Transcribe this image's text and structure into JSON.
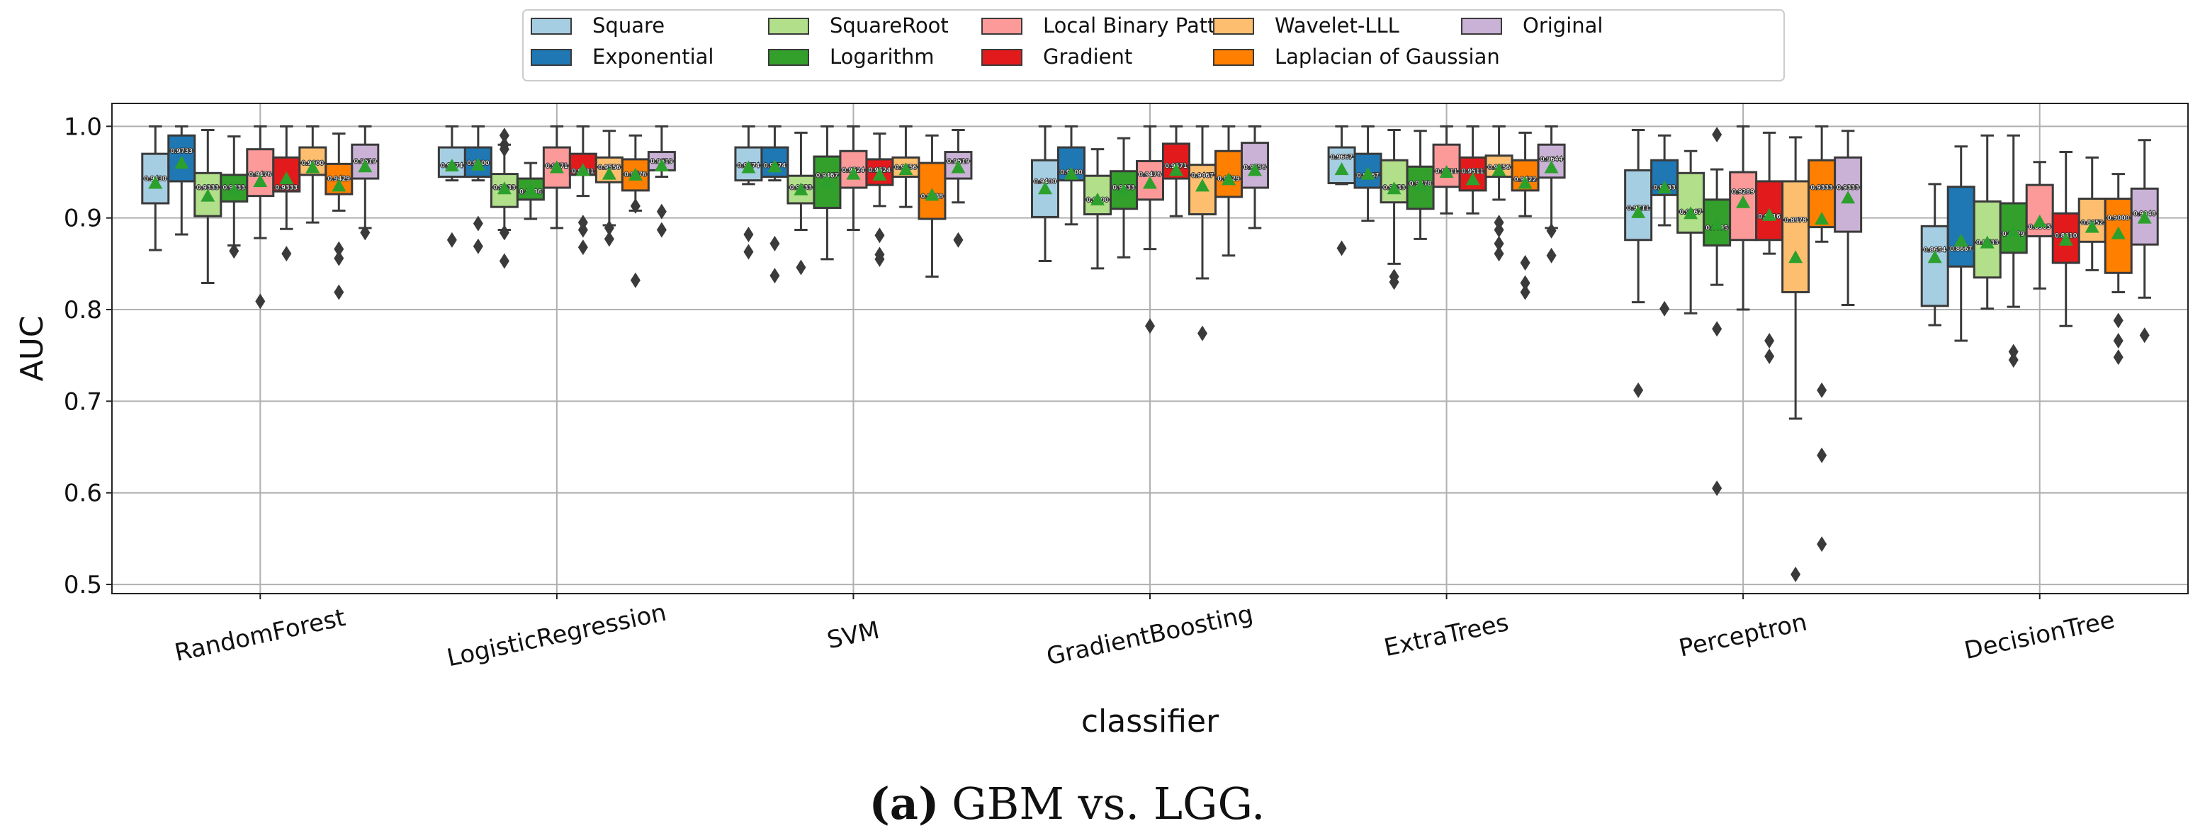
{
  "chart_data": {
    "type": "boxplot",
    "title": "",
    "xlabel": "classifier",
    "ylabel": "AUC",
    "ylim": [
      0.49,
      1.025
    ],
    "yticks": [
      "0.5",
      "0.6",
      "0.7",
      "0.8",
      "0.9",
      "1.0"
    ],
    "grid": true,
    "legend_position": "top-center",
    "caption_tag": "(a)",
    "caption": "GBM vs. LGG.",
    "categories": [
      "RandomForest",
      "LogisticRegression",
      "SVM",
      "GradientBoosting",
      "ExtraTrees",
      "Perceptron",
      "DecisionTree"
    ],
    "series": [
      {
        "name": "Square",
        "color": "#a6cee3",
        "boxes": [
          {
            "min": 0.865,
            "q1": 0.916,
            "median": 0.943,
            "q3": 0.97,
            "max": 1.0,
            "mean": 0.938,
            "median_label": "0.9430",
            "outliers": []
          },
          {
            "min": 0.941,
            "q1": 0.945,
            "median": 0.9574,
            "q3": 0.977,
            "max": 1.0,
            "mean": 0.957,
            "median_label": "0.9574",
            "outliers": [
              0.876
            ]
          },
          {
            "min": 0.937,
            "q1": 0.941,
            "median": 0.9574,
            "q3": 0.977,
            "max": 1.0,
            "mean": 0.955,
            "median_label": "0.9574",
            "outliers": [
              0.882,
              0.863
            ]
          },
          {
            "min": 0.853,
            "q1": 0.901,
            "median": 0.94,
            "q3": 0.963,
            "max": 1.0,
            "mean": 0.932,
            "median_label": "0.9400",
            "outliers": []
          },
          {
            "min": 0.937,
            "q1": 0.938,
            "median": 0.9667,
            "q3": 0.977,
            "max": 1.0,
            "mean": 0.953,
            "median_label": "0.9667",
            "outliers": [
              0.867
            ]
          },
          {
            "min": 0.808,
            "q1": 0.876,
            "median": 0.9111,
            "q3": 0.952,
            "max": 0.996,
            "mean": 0.906,
            "median_label": "0.9111",
            "outliers": [
              0.712
            ]
          },
          {
            "min": 0.783,
            "q1": 0.804,
            "median": 0.8654,
            "q3": 0.891,
            "max": 0.937,
            "mean": 0.857,
            "median_label": "0.8654",
            "outliers": []
          }
        ]
      },
      {
        "name": "Exponential",
        "color": "#1f78b4",
        "boxes": [
          {
            "min": 0.882,
            "q1": 0.94,
            "median": 0.9733,
            "q3": 0.99,
            "max": 1.0,
            "mean": 0.96,
            "median_label": "0.9733",
            "outliers": []
          },
          {
            "min": 0.941,
            "q1": 0.945,
            "median": 0.96,
            "q3": 0.977,
            "max": 1.0,
            "mean": 0.958,
            "median_label": "0.9600",
            "outliers": [
              0.894,
              0.869
            ]
          },
          {
            "min": 0.941,
            "q1": 0.945,
            "median": 0.9574,
            "q3": 0.977,
            "max": 1.0,
            "mean": 0.956,
            "median_label": "0.9574",
            "outliers": [
              0.872,
              0.837
            ]
          },
          {
            "min": 0.893,
            "q1": 0.941,
            "median": 0.95,
            "q3": 0.977,
            "max": 1.0,
            "mean": 0.948,
            "median_label": "0.9500",
            "outliers": []
          },
          {
            "min": 0.897,
            "q1": 0.933,
            "median": 0.9467,
            "q3": 0.97,
            "max": 1.0,
            "mean": 0.948,
            "median_label": "0.9467",
            "outliers": []
          },
          {
            "min": 0.892,
            "q1": 0.925,
            "median": 0.9333,
            "q3": 0.963,
            "max": 0.99,
            "mean": 0.933,
            "median_label": "0.9333",
            "outliers": [
              0.801
            ]
          },
          {
            "min": 0.766,
            "q1": 0.847,
            "median": 0.8667,
            "q3": 0.934,
            "max": 0.978,
            "mean": 0.875,
            "median_label": "0.8667",
            "outliers": []
          }
        ]
      },
      {
        "name": "SquareRoot",
        "color": "#b2df8a",
        "boxes": [
          {
            "min": 0.829,
            "q1": 0.902,
            "median": 0.9333,
            "q3": 0.949,
            "max": 0.996,
            "mean": 0.924,
            "median_label": "0.9333",
            "outliers": []
          },
          {
            "min": 0.887,
            "q1": 0.912,
            "median": 0.9333,
            "q3": 0.948,
            "max": 0.98,
            "mean": 0.932,
            "median_label": "0.9333",
            "outliers": [
              0.99,
              0.98,
              0.975,
              0.884,
              0.853
            ]
          },
          {
            "min": 0.887,
            "q1": 0.916,
            "median": 0.9333,
            "q3": 0.946,
            "max": 0.993,
            "mean": 0.931,
            "median_label": "0.9333",
            "outliers": [
              0.846
            ]
          },
          {
            "min": 0.845,
            "q1": 0.904,
            "median": 0.92,
            "q3": 0.946,
            "max": 0.975,
            "mean": 0.92,
            "median_label": "0.9200",
            "outliers": []
          },
          {
            "min": 0.85,
            "q1": 0.917,
            "median": 0.9333,
            "q3": 0.963,
            "max": 0.996,
            "mean": 0.932,
            "median_label": "0.9333",
            "outliers": [
              0.836,
              0.83
            ]
          },
          {
            "min": 0.796,
            "q1": 0.884,
            "median": 0.9067,
            "q3": 0.949,
            "max": 0.973,
            "mean": 0.905,
            "median_label": "0.9067",
            "outliers": []
          },
          {
            "min": 0.801,
            "q1": 0.835,
            "median": 0.8733,
            "q3": 0.918,
            "max": 0.99,
            "mean": 0.873,
            "median_label": "0.8733",
            "outliers": []
          }
        ]
      },
      {
        "name": "Logarithm",
        "color": "#33a02c",
        "boxes": [
          {
            "min": 0.87,
            "q1": 0.918,
            "median": 0.9333,
            "q3": 0.947,
            "max": 0.989,
            "mean": 0.93,
            "median_label": "0.9333",
            "outliers": [
              0.864
            ]
          },
          {
            "min": 0.899,
            "q1": 0.92,
            "median": 0.9286,
            "q3": 0.943,
            "max": 0.96,
            "mean": 0.931,
            "median_label": "0.9286",
            "outliers": []
          },
          {
            "min": 0.855,
            "q1": 0.911,
            "median": 0.9467,
            "q3": 0.967,
            "max": 1.0,
            "mean": 0.94,
            "median_label": "0.9467",
            "outliers": []
          },
          {
            "min": 0.857,
            "q1": 0.91,
            "median": 0.9333,
            "q3": 0.951,
            "max": 0.987,
            "mean": 0.93,
            "median_label": "0.9333",
            "outliers": []
          },
          {
            "min": 0.877,
            "q1": 0.91,
            "median": 0.9378,
            "q3": 0.956,
            "max": 0.995,
            "mean": 0.935,
            "median_label": "0.9378",
            "outliers": []
          },
          {
            "min": 0.827,
            "q1": 0.87,
            "median": 0.8895,
            "q3": 0.92,
            "max": 0.953,
            "mean": 0.893,
            "median_label": "0.8895",
            "outliers": [
              0.991,
              0.779,
              0.605
            ]
          },
          {
            "min": 0.803,
            "q1": 0.862,
            "median": 0.8829,
            "q3": 0.916,
            "max": 0.99,
            "mean": 0.885,
            "median_label": "0.8829",
            "outliers": [
              0.754,
              0.745
            ]
          }
        ]
      },
      {
        "name": "Local Binary Pattern",
        "color": "#fb9a99",
        "boxes": [
          {
            "min": 0.878,
            "q1": 0.924,
            "median": 0.9476,
            "q3": 0.975,
            "max": 1.0,
            "mean": 0.94,
            "median_label": "0.9476",
            "outliers": [
              0.809
            ]
          },
          {
            "min": 0.889,
            "q1": 0.933,
            "median": 0.9571,
            "q3": 0.977,
            "max": 1.0,
            "mean": 0.955,
            "median_label": "0.9571",
            "outliers": []
          },
          {
            "min": 0.887,
            "q1": 0.933,
            "median": 0.9524,
            "q3": 0.973,
            "max": 1.0,
            "mean": 0.948,
            "median_label": "0.9524",
            "outliers": []
          },
          {
            "min": 0.866,
            "q1": 0.92,
            "median": 0.9476,
            "q3": 0.962,
            "max": 1.0,
            "mean": 0.938,
            "median_label": "0.9476",
            "outliers": [
              0.782
            ]
          },
          {
            "min": 0.905,
            "q1": 0.934,
            "median": 0.9511,
            "q3": 0.98,
            "max": 1.0,
            "mean": 0.95,
            "median_label": "0.9511",
            "outliers": []
          },
          {
            "min": 0.8,
            "q1": 0.876,
            "median": 0.9289,
            "q3": 0.95,
            "max": 1.0,
            "mean": 0.917,
            "median_label": "0.9289",
            "outliers": []
          },
          {
            "min": 0.823,
            "q1": 0.88,
            "median": 0.8905,
            "q3": 0.936,
            "max": 0.961,
            "mean": 0.896,
            "median_label": "0.8905",
            "outliers": []
          }
        ]
      },
      {
        "name": "Gradient",
        "color": "#e31a1c",
        "boxes": [
          {
            "min": 0.888,
            "q1": 0.929,
            "median": 0.9333,
            "q3": 0.966,
            "max": 1.0,
            "mean": 0.943,
            "median_label": "0.9333",
            "outliers": [
              0.861
            ]
          },
          {
            "min": 0.924,
            "q1": 0.947,
            "median": 0.9511,
            "q3": 0.97,
            "max": 1.0,
            "mean": 0.952,
            "median_label": "0.9511",
            "outliers": [
              0.895,
              0.887,
              0.868
            ]
          },
          {
            "min": 0.913,
            "q1": 0.936,
            "median": 0.9524,
            "q3": 0.964,
            "max": 0.992,
            "mean": 0.947,
            "median_label": "0.9524",
            "outliers": [
              0.881,
              0.86,
              0.855
            ]
          },
          {
            "min": 0.902,
            "q1": 0.943,
            "median": 0.9571,
            "q3": 0.981,
            "max": 1.0,
            "mean": 0.952,
            "median_label": "0.9571",
            "outliers": []
          },
          {
            "min": 0.905,
            "q1": 0.93,
            "median": 0.9511,
            "q3": 0.966,
            "max": 1.0,
            "mean": 0.942,
            "median_label": "0.9511",
            "outliers": []
          },
          {
            "min": 0.861,
            "q1": 0.876,
            "median": 0.9016,
            "q3": 0.94,
            "max": 0.993,
            "mean": 0.903,
            "median_label": "0.9016",
            "outliers": [
              0.766,
              0.749
            ]
          },
          {
            "min": 0.782,
            "q1": 0.851,
            "median": 0.881,
            "q3": 0.905,
            "max": 0.972,
            "mean": 0.876,
            "median_label": "0.8810",
            "outliers": []
          }
        ]
      },
      {
        "name": "Wavelet-LLL",
        "color": "#fdbf6f",
        "boxes": [
          {
            "min": 0.895,
            "q1": 0.947,
            "median": 0.96,
            "q3": 0.977,
            "max": 1.0,
            "mean": 0.955,
            "median_label": "0.9600",
            "outliers": []
          },
          {
            "min": 0.892,
            "q1": 0.939,
            "median": 0.9556,
            "q3": 0.966,
            "max": 0.995,
            "mean": 0.948,
            "median_label": "0.9556",
            "outliers": [
              0.889,
              0.877
            ]
          },
          {
            "min": 0.912,
            "q1": 0.945,
            "median": 0.9556,
            "q3": 0.966,
            "max": 1.0,
            "mean": 0.953,
            "median_label": "0.9556",
            "outliers": []
          },
          {
            "min": 0.834,
            "q1": 0.904,
            "median": 0.9467,
            "q3": 0.958,
            "max": 1.0,
            "mean": 0.935,
            "median_label": "0.9467",
            "outliers": [
              0.774
            ]
          },
          {
            "min": 0.92,
            "q1": 0.945,
            "median": 0.9556,
            "q3": 0.968,
            "max": 1.0,
            "mean": 0.952,
            "median_label": "0.9556",
            "outliers": [
              0.895,
              0.887,
              0.872,
              0.861
            ]
          },
          {
            "min": 0.681,
            "q1": 0.819,
            "median": 0.8978,
            "q3": 0.94,
            "max": 0.988,
            "mean": 0.857,
            "median_label": "0.8978",
            "outliers": [
              0.511
            ]
          },
          {
            "min": 0.843,
            "q1": 0.874,
            "median": 0.8952,
            "q3": 0.921,
            "max": 0.966,
            "mean": 0.89,
            "median_label": "0.8952",
            "outliers": []
          }
        ]
      },
      {
        "name": "Laplacian of Gaussian",
        "color": "#ff7f00",
        "boxes": [
          {
            "min": 0.908,
            "q1": 0.926,
            "median": 0.9429,
            "q3": 0.959,
            "max": 0.992,
            "mean": 0.935,
            "median_label": "0.9429",
            "outliers": [
              0.866,
              0.856,
              0.819
            ]
          },
          {
            "min": 0.908,
            "q1": 0.93,
            "median": 0.9476,
            "q3": 0.964,
            "max": 0.99,
            "mean": 0.947,
            "median_label": "0.9476",
            "outliers": [
              0.913,
              0.832
            ]
          },
          {
            "min": 0.836,
            "q1": 0.899,
            "median": 0.9238,
            "q3": 0.96,
            "max": 0.99,
            "mean": 0.925,
            "median_label": "0.9238",
            "outliers": []
          },
          {
            "min": 0.859,
            "q1": 0.923,
            "median": 0.9429,
            "q3": 0.973,
            "max": 1.0,
            "mean": 0.942,
            "median_label": "0.9429",
            "outliers": []
          },
          {
            "min": 0.902,
            "q1": 0.93,
            "median": 0.9422,
            "q3": 0.963,
            "max": 0.993,
            "mean": 0.938,
            "median_label": "0.9422",
            "outliers": [
              0.851,
              0.829,
              0.819
            ]
          },
          {
            "min": 0.874,
            "q1": 0.89,
            "median": 0.9333,
            "q3": 0.963,
            "max": 1.0,
            "mean": 0.899,
            "median_label": "0.9333",
            "outliers": [
              0.712,
              0.641,
              0.544
            ]
          },
          {
            "min": 0.819,
            "q1": 0.84,
            "median": 0.9,
            "q3": 0.921,
            "max": 0.948,
            "mean": 0.883,
            "median_label": "0.9000",
            "outliers": [
              0.788,
              0.766,
              0.748
            ]
          }
        ]
      },
      {
        "name": "Original",
        "color": "#cab2d6",
        "boxes": [
          {
            "min": 0.889,
            "q1": 0.943,
            "median": 0.9619,
            "q3": 0.98,
            "max": 1.0,
            "mean": 0.956,
            "median_label": "0.9619",
            "outliers": [
              0.884
            ]
          },
          {
            "min": 0.945,
            "q1": 0.952,
            "median": 0.9619,
            "q3": 0.972,
            "max": 1.0,
            "mean": 0.957,
            "median_label": "0.9619",
            "outliers": [
              0.907,
              0.887
            ]
          },
          {
            "min": 0.917,
            "q1": 0.943,
            "median": 0.9619,
            "q3": 0.972,
            "max": 0.996,
            "mean": 0.955,
            "median_label": "0.9619",
            "outliers": [
              0.876
            ]
          },
          {
            "min": 0.889,
            "q1": 0.933,
            "median": 0.9556,
            "q3": 0.982,
            "max": 1.0,
            "mean": 0.952,
            "median_label": "0.9556",
            "outliers": []
          },
          {
            "min": 0.889,
            "q1": 0.944,
            "median": 0.9644,
            "q3": 0.98,
            "max": 1.0,
            "mean": 0.955,
            "median_label": "0.9644",
            "outliers": [
              0.886,
              0.859
            ]
          },
          {
            "min": 0.805,
            "q1": 0.885,
            "median": 0.9333,
            "q3": 0.966,
            "max": 0.995,
            "mean": 0.922,
            "median_label": "0.9333",
            "outliers": []
          },
          {
            "min": 0.813,
            "q1": 0.871,
            "median": 0.9048,
            "q3": 0.932,
            "max": 0.985,
            "mean": 0.9,
            "median_label": "0.9048",
            "outliers": [
              0.772
            ]
          }
        ]
      }
    ]
  }
}
